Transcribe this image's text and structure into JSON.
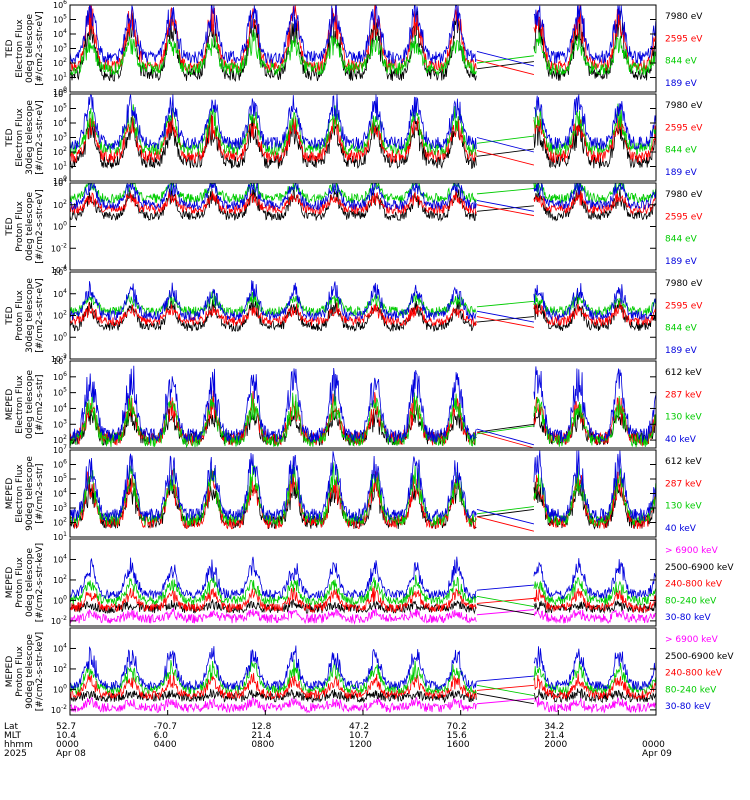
{
  "chart_data": [
    {
      "type": "line",
      "ylabel": [
        "TED",
        "Electron Flux",
        "0deg telescope",
        "[#/cm2-s-str-eV]"
      ],
      "ylog": true,
      "yticks_exp": [
        6,
        5,
        4,
        3,
        2,
        1,
        0
      ],
      "ylim_exp": [
        0,
        6
      ],
      "series": [
        {
          "name": "7980 eV",
          "color": "#000000",
          "level": 1.2,
          "spikes": 3.6
        },
        {
          "name": "2595 eV",
          "color": "#ff0000",
          "level": 1.8,
          "spikes": 3.6
        },
        {
          "name": "844 eV",
          "color": "#00cc00",
          "level": 1.6,
          "spikes": 2.0
        },
        {
          "name": "189 eV",
          "color": "#0000dd",
          "level": 2.4,
          "spikes": 3.4
        }
      ]
    },
    {
      "type": "line",
      "ylabel": [
        "TED",
        "Electron Flux",
        "30deg telescope",
        "[#/cm2-s-str-eV]"
      ],
      "ylog": true,
      "yticks_exp": [
        6,
        5,
        4,
        3,
        2,
        1,
        0
      ],
      "ylim_exp": [
        0,
        6
      ],
      "series": [
        {
          "name": "7980 eV",
          "color": "#000000",
          "level": 1.3,
          "spikes": 2.5
        },
        {
          "name": "2595 eV",
          "color": "#ff0000",
          "level": 1.7,
          "spikes": 2.5
        },
        {
          "name": "844 eV",
          "color": "#00cc00",
          "level": 2.2,
          "spikes": 2.5
        },
        {
          "name": "189 eV",
          "color": "#0000dd",
          "level": 2.6,
          "spikes": 3.0
        }
      ]
    },
    {
      "type": "line",
      "ylabel": [
        "TED",
        "Proton Flux",
        "0deg telescope",
        "[#/cm2-s-str-eV]"
      ],
      "ylog": true,
      "yticks_exp": [
        4,
        2,
        0,
        -2,
        -4
      ],
      "ylim_exp": [
        -4,
        4
      ],
      "series": [
        {
          "name": "7980 eV",
          "color": "#000000",
          "level": 1.0,
          "spikes": 2.0
        },
        {
          "name": "2595 eV",
          "color": "#ff0000",
          "level": 1.6,
          "spikes": 1.2
        },
        {
          "name": "844 eV",
          "color": "#00cc00",
          "level": 2.6,
          "spikes": 1.4
        },
        {
          "name": "189 eV",
          "color": "#0000dd",
          "level": 2.0,
          "spikes": 2.0
        }
      ]
    },
    {
      "type": "line",
      "ylabel": [
        "TED",
        "Proton Flux",
        "30deg telescope",
        "[#/cm2-s-str-eV]"
      ],
      "ylog": true,
      "yticks_exp": [
        6,
        4,
        2,
        0,
        -2
      ],
      "ylim_exp": [
        -2,
        6
      ],
      "series": [
        {
          "name": "7980 eV",
          "color": "#000000",
          "level": 1.0,
          "spikes": 2.0
        },
        {
          "name": "2595 eV",
          "color": "#ff0000",
          "level": 1.5,
          "spikes": 1.2
        },
        {
          "name": "844 eV",
          "color": "#00cc00",
          "level": 2.4,
          "spikes": 1.3
        },
        {
          "name": "189 eV",
          "color": "#0000dd",
          "level": 2.0,
          "spikes": 2.5
        }
      ]
    },
    {
      "type": "line",
      "ylabel": [
        "MEPED",
        "Electron Flux",
        "0deg telescope",
        "[#/cm2-s-str]"
      ],
      "ylog": true,
      "yticks_exp": [
        7,
        6,
        5,
        4,
        3,
        2
      ],
      "ylim_exp": [
        1.5,
        7
      ],
      "series": [
        {
          "name": "612 keV",
          "color": "#000000",
          "level": 2.1,
          "spikes": 1.5
        },
        {
          "name": "287 keV",
          "color": "#ff0000",
          "level": 2.1,
          "spikes": 2.2
        },
        {
          "name": "130 keV",
          "color": "#00cc00",
          "level": 2.0,
          "spikes": 2.5
        },
        {
          "name": "40 keV",
          "color": "#0000dd",
          "level": 2.3,
          "spikes": 3.8
        }
      ]
    },
    {
      "type": "line",
      "ylabel": [
        "MEPED",
        "Electron Flux",
        "90deg telescope",
        "[#/cm2-s-str]"
      ],
      "ylog": true,
      "yticks_exp": [
        7,
        6,
        5,
        4,
        3,
        2,
        1
      ],
      "ylim_exp": [
        1,
        7
      ],
      "series": [
        {
          "name": "612 keV",
          "color": "#000000",
          "level": 2.0,
          "spikes": 2.5
        },
        {
          "name": "287 keV",
          "color": "#ff0000",
          "level": 2.0,
          "spikes": 3.0
        },
        {
          "name": "130 keV",
          "color": "#00cc00",
          "level": 2.2,
          "spikes": 3.2
        },
        {
          "name": "40 keV",
          "color": "#0000dd",
          "level": 2.5,
          "spikes": 3.8
        }
      ]
    },
    {
      "type": "line",
      "ylabel": [
        "MEPED",
        "Proton Flux",
        "0deg telescope",
        "[#/cm2-s-str-keV]"
      ],
      "ylog": true,
      "yticks_exp": [
        4,
        2,
        0,
        -2
      ],
      "ylim_exp": [
        -2.5,
        6
      ],
      "series": [
        {
          "name": "> 6900 keV",
          "color": "#ff00ff",
          "level": -1.8,
          "spikes": 0.6
        },
        {
          "name": "2500-6900 keV",
          "color": "#000000",
          "level": -0.8,
          "spikes": 0.4
        },
        {
          "name": "240-800 keV",
          "color": "#ff0000",
          "level": -0.7,
          "spikes": 1.5
        },
        {
          "name": "80-240 keV",
          "color": "#00cc00",
          "level": 0.0,
          "spikes": 1.8
        },
        {
          "name": "30-80 keV",
          "color": "#0000dd",
          "level": 0.6,
          "spikes": 2.8
        }
      ]
    },
    {
      "type": "line",
      "ylabel": [
        "MEPED",
        "Proton Flux",
        "90deg telescope",
        "[#/cm2-s-str-keV]"
      ],
      "ylog": true,
      "yticks_exp": [
        4,
        2,
        0,
        -2
      ],
      "ylim_exp": [
        -2.5,
        6
      ],
      "series": [
        {
          "name": "> 6900 keV",
          "color": "#ff00ff",
          "level": -1.8,
          "spikes": 0.6
        },
        {
          "name": "2500-6900 keV",
          "color": "#000000",
          "level": -0.8,
          "spikes": 0.4
        },
        {
          "name": "240-800 keV",
          "color": "#ff0000",
          "level": -0.5,
          "spikes": 1.5
        },
        {
          "name": "80-240 keV",
          "color": "#00cc00",
          "level": 0.0,
          "spikes": 2.2
        },
        {
          "name": "30-80 keV",
          "color": "#0000dd",
          "level": 0.4,
          "spikes": 3.2
        }
      ]
    }
  ],
  "x_axis": {
    "range_minutes": [
      0,
      1440
    ],
    "data_gap_minutes": [
      1000,
      1140
    ],
    "tick_minutes": [
      0,
      240,
      480,
      720,
      960,
      1200,
      1440
    ],
    "row_labels": [
      "Lat",
      "MLT",
      "hhmm",
      "2025"
    ],
    "columns": [
      {
        "minute": 0,
        "values": [
          "52.7",
          "10.4",
          "0000",
          "Apr 08"
        ]
      },
      {
        "minute": 240,
        "values": [
          "-70.7",
          "6.0",
          "0400",
          ""
        ]
      },
      {
        "minute": 480,
        "values": [
          "12.8",
          "21.4",
          "0800",
          ""
        ]
      },
      {
        "minute": 720,
        "values": [
          "47.2",
          "10.7",
          "1200",
          ""
        ]
      },
      {
        "minute": 960,
        "values": [
          "70.2",
          "15.6",
          "1600",
          ""
        ]
      },
      {
        "minute": 1200,
        "values": [
          "34.2",
          "21.4",
          "2000",
          ""
        ]
      },
      {
        "minute": 1440,
        "values": [
          "",
          "",
          "0000",
          "Apr 09"
        ]
      }
    ]
  }
}
